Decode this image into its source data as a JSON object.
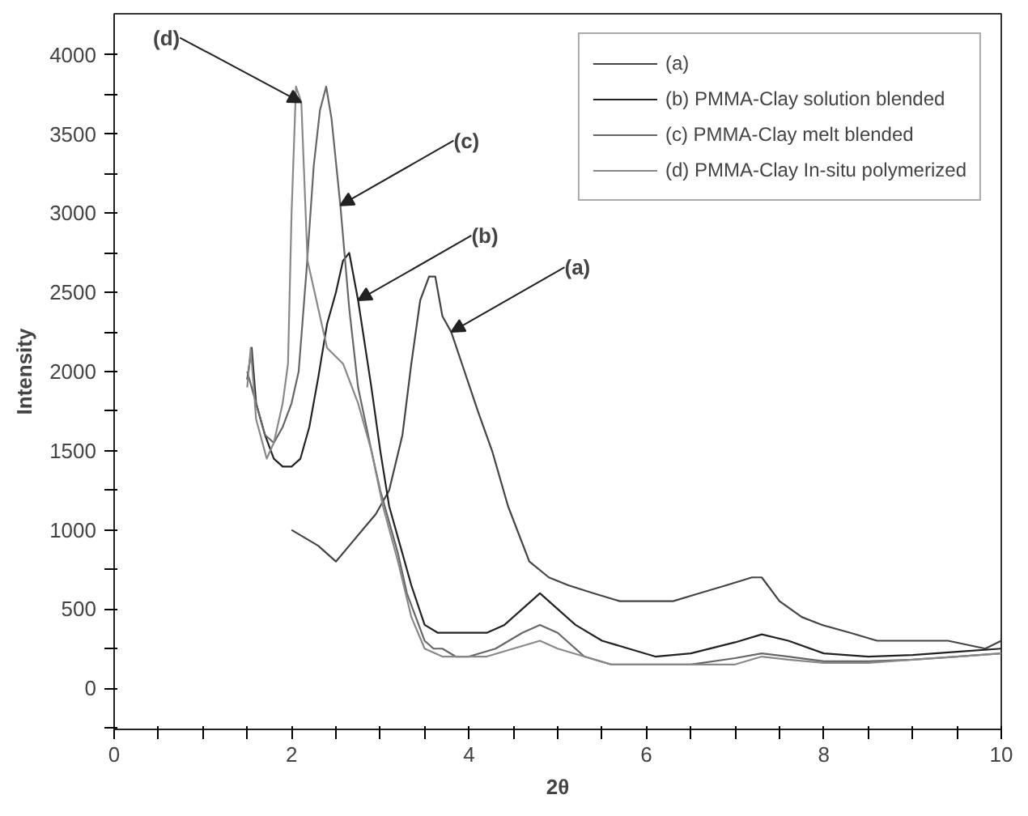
{
  "chart_data": {
    "type": "line",
    "xlabel": "2θ",
    "ylabel": "Intensity",
    "xlim": [
      0,
      10
    ],
    "ylim": [
      -260,
      4260
    ],
    "xticks": [
      0,
      {
        "value": 0.5,
        "label": null
      },
      2,
      {
        "value": 1,
        "label": null
      },
      {
        "value": 1.5,
        "label": null
      },
      {
        "value": 2.5,
        "label": null
      },
      {
        "value": 3,
        "label": null
      },
      {
        "value": 3.5,
        "label": null
      },
      4,
      {
        "value": 4.5,
        "label": null
      },
      {
        "value": 5,
        "label": null
      },
      {
        "value": 5.5,
        "label": null
      },
      6,
      {
        "value": 6.5,
        "label": null
      },
      {
        "value": 7,
        "label": null
      },
      {
        "value": 7.5,
        "label": null
      },
      8,
      {
        "value": 8.5,
        "label": null
      },
      {
        "value": 9,
        "label": null
      },
      {
        "value": 9.5,
        "label": null
      },
      10
    ],
    "yticks": [
      {
        "value": -250,
        "label": null
      },
      0,
      {
        "value": 250,
        "label": null
      },
      500,
      {
        "value": 750,
        "label": null
      },
      1000,
      {
        "value": 1250,
        "label": null
      },
      1500,
      {
        "value": 1750,
        "label": null
      },
      2000,
      {
        "value": 2250,
        "label": null
      },
      2500,
      {
        "value": 2750,
        "label": null
      },
      3000,
      {
        "value": 3250,
        "label": null
      },
      3500,
      {
        "value": 3750,
        "label": null
      },
      4000
    ],
    "grid": false,
    "legend": "top right",
    "line_style": "solid",
    "series": [
      {
        "name": "(a)",
        "color": "#444444",
        "x": [
          2.0,
          2.15,
          2.3,
          2.5,
          2.65,
          2.8,
          2.95,
          3.1,
          3.25,
          3.35,
          3.45,
          3.55,
          3.62,
          3.7,
          3.8,
          3.95,
          4.1,
          4.26,
          4.44,
          4.68,
          4.9,
          5.12,
          5.4,
          5.7,
          5.96,
          6.3,
          6.6,
          6.9,
          7.19,
          7.3,
          7.5,
          7.75,
          7.98,
          8.3,
          8.6,
          9.0,
          9.4,
          9.82,
          10.0
        ],
        "values": [
          1000,
          950,
          900,
          800,
          900,
          1000,
          1100,
          1250,
          1600,
          2050,
          2450,
          2600,
          2600,
          2350,
          2250,
          2000,
          1750,
          1500,
          1150,
          800,
          700,
          650,
          600,
          550,
          550,
          550,
          600,
          650,
          700,
          700,
          550,
          450,
          400,
          350,
          300,
          300,
          300,
          250,
          300
        ]
      },
      {
        "name": "(b) PMMA-Clay solution blended",
        "color": "#222222",
        "x": [
          1.5,
          1.55,
          1.6,
          1.7,
          1.8,
          1.9,
          2.0,
          2.1,
          2.2,
          2.3,
          2.4,
          2.5,
          2.58,
          2.65,
          2.75,
          2.9,
          3.0,
          3.1,
          3.2,
          3.35,
          3.5,
          3.65,
          3.8,
          4.0,
          4.2,
          4.4,
          4.6,
          4.8,
          5.0,
          5.2,
          5.5,
          5.8,
          6.1,
          6.5,
          7.0,
          7.3,
          7.6,
          8.0,
          8.5,
          9.0,
          9.5,
          10.0
        ],
        "values": [
          1950,
          2150,
          1800,
          1600,
          1450,
          1400,
          1400,
          1450,
          1650,
          1960,
          2300,
          2500,
          2700,
          2750,
          2450,
          1900,
          1500,
          1150,
          950,
          650,
          400,
          350,
          350,
          350,
          350,
          400,
          500,
          600,
          500,
          400,
          300,
          250,
          200,
          220,
          290,
          340,
          300,
          220,
          200,
          210,
          230,
          250
        ]
      },
      {
        "name": "(c) PMMA-Clay melt blended",
        "color": "#666666",
        "x": [
          1.5,
          1.6,
          1.7,
          1.8,
          1.9,
          2.0,
          2.08,
          2.17,
          2.25,
          2.32,
          2.39,
          2.45,
          2.55,
          2.65,
          2.75,
          2.9,
          3.0,
          3.1,
          3.2,
          3.3,
          3.4,
          3.5,
          3.6,
          3.7,
          3.85,
          4.0,
          4.3,
          4.6,
          4.8,
          5.0,
          5.3,
          5.6,
          6.0,
          6.5,
          7.0,
          7.3,
          7.6,
          8.0,
          8.5,
          9.0,
          9.5,
          10.0
        ],
        "values": [
          2000,
          1800,
          1600,
          1550,
          1650,
          1800,
          2000,
          2650,
          3300,
          3650,
          3800,
          3600,
          3050,
          2400,
          1900,
          1500,
          1250,
          1050,
          850,
          600,
          450,
          300,
          250,
          250,
          200,
          200,
          250,
          350,
          400,
          350,
          200,
          150,
          150,
          150,
          190,
          220,
          200,
          170,
          170,
          180,
          200,
          220
        ]
      },
      {
        "name": "(d) PMMA-Clay In-situ polymerized",
        "color": "#888888",
        "x": [
          1.5,
          1.54,
          1.6,
          1.72,
          1.8,
          1.9,
          1.96,
          2.0,
          2.05,
          2.11,
          2.18,
          2.3,
          2.4,
          2.58,
          2.75,
          2.9,
          3.03,
          3.2,
          3.35,
          3.5,
          3.7,
          3.9,
          4.2,
          4.5,
          4.8,
          5.0,
          5.3,
          5.6,
          6.0,
          6.5,
          7.0,
          7.3,
          7.6,
          8.0,
          8.5,
          9.0,
          9.5,
          10.0
        ],
        "values": [
          1900,
          2150,
          1700,
          1450,
          1550,
          1800,
          2050,
          3000,
          3800,
          3700,
          2700,
          2400,
          2150,
          2050,
          1800,
          1500,
          1150,
          800,
          450,
          250,
          200,
          200,
          200,
          250,
          300,
          250,
          200,
          150,
          150,
          150,
          150,
          200,
          180,
          160,
          160,
          180,
          200,
          220
        ]
      }
    ],
    "annotations": [
      {
        "text": "(d)",
        "x": 2.11,
        "y": 3700
      },
      {
        "text": "(c)",
        "x": 2.55,
        "y": 3050
      },
      {
        "text": "(b)",
        "x": 2.75,
        "y": 2450
      },
      {
        "text": "(a)",
        "x": 3.8,
        "y": 2250
      }
    ]
  }
}
